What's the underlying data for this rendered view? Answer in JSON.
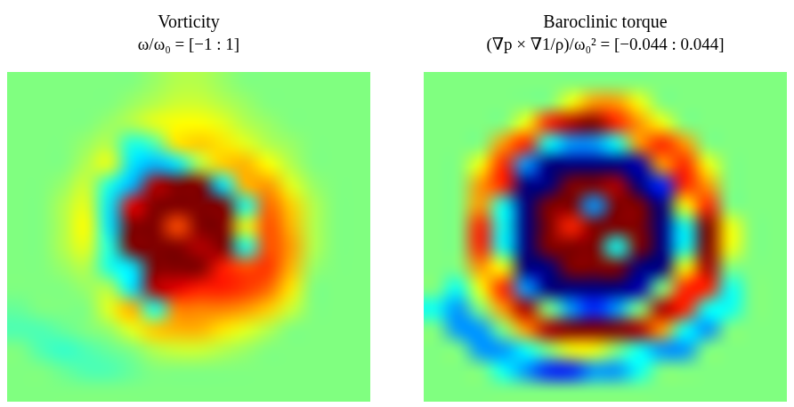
{
  "chart_data": [
    {
      "type": "heatmap",
      "title": "Vorticity",
      "subtitle": "ω/ω₀ = [−1 : 1]",
      "color_range": [
        -1,
        1
      ],
      "tick_labels": false,
      "cells": [
        [
          0,
          0,
          0,
          0,
          0,
          0,
          0.05,
          0.1,
          0.1,
          0.05,
          0,
          0,
          0,
          0,
          0,
          0
        ],
        [
          0,
          0,
          0,
          0,
          0,
          0.05,
          0.1,
          0.15,
          0.15,
          0.1,
          0.05,
          0,
          0,
          0,
          0,
          0
        ],
        [
          0,
          0,
          0,
          0,
          0.05,
          0.1,
          0.2,
          0.25,
          0.25,
          0.2,
          0.1,
          0.05,
          0,
          0,
          0,
          0
        ],
        [
          0,
          0,
          0,
          0.05,
          0.1,
          -0.2,
          -0.1,
          0.3,
          0.35,
          0.3,
          0.2,
          0.1,
          0.05,
          0,
          0,
          0
        ],
        [
          0,
          0,
          0,
          0.1,
          0.2,
          -0.3,
          -0.4,
          -0.3,
          0.1,
          0.35,
          0.4,
          0.25,
          0.1,
          0,
          0,
          0
        ],
        [
          0,
          0,
          0.05,
          0.15,
          -0.2,
          -0.4,
          0.9,
          1,
          1,
          -0.3,
          0.4,
          0.45,
          0.2,
          0.05,
          0,
          0
        ],
        [
          0,
          0,
          0.1,
          0.2,
          -0.3,
          0.8,
          1,
          1,
          1,
          1,
          -0.2,
          0.55,
          0.35,
          0.1,
          0,
          0
        ],
        [
          0,
          0,
          0.1,
          0.25,
          -0.3,
          1,
          1,
          0.6,
          1,
          1,
          0.2,
          0.6,
          0.4,
          0.1,
          0,
          0
        ],
        [
          0,
          0,
          0.1,
          0.2,
          -0.2,
          1,
          1,
          1,
          0.9,
          1,
          -0.2,
          0.6,
          0.45,
          0.1,
          0,
          0
        ],
        [
          0,
          0,
          0.05,
          0.1,
          -0.2,
          -0.3,
          1,
          1,
          1,
          0.7,
          0.6,
          0.65,
          0.4,
          0.05,
          0,
          0
        ],
        [
          0,
          0,
          0,
          0.05,
          0.1,
          -0.3,
          0.9,
          0.8,
          0.7,
          0.7,
          0.65,
          0.55,
          0.3,
          0,
          0,
          0
        ],
        [
          -0.05,
          0,
          0,
          0,
          0.2,
          0.4,
          -0.2,
          0.5,
          0.5,
          0.5,
          0.45,
          0.35,
          0.15,
          0,
          0,
          0
        ],
        [
          -0.1,
          -0.1,
          -0.05,
          0,
          0.05,
          0.2,
          0.35,
          0.4,
          0.4,
          0.3,
          0.2,
          0.1,
          0,
          0,
          0,
          0
        ],
        [
          0,
          -0.1,
          -0.15,
          -0.1,
          -0.05,
          0,
          0.1,
          0.15,
          0.15,
          0.1,
          0.05,
          0,
          0,
          0,
          0,
          0
        ],
        [
          0,
          0,
          -0.05,
          -0.1,
          -0.1,
          -0.05,
          0,
          0,
          0,
          0,
          0,
          0,
          0,
          0,
          0,
          0
        ],
        [
          0,
          0,
          0,
          0,
          0,
          0,
          0,
          0,
          0,
          0,
          0,
          0,
          0,
          0,
          0,
          0
        ]
      ]
    },
    {
      "type": "heatmap",
      "title": "Baroclinic torque",
      "subtitle": "(∇p × ∇1/ρ)/ω₀² = [−0.044 : 0.044]",
      "color_range": [
        -0.044,
        0.044
      ],
      "tick_labels": false,
      "cells": [
        [
          0,
          0,
          0,
          0,
          0,
          0,
          0,
          0,
          0,
          0,
          0,
          0,
          0,
          0,
          0,
          0
        ],
        [
          0,
          0,
          0,
          0,
          0,
          0,
          0.01,
          0.02,
          0.02,
          0.01,
          0,
          0,
          0,
          0,
          0,
          0
        ],
        [
          0,
          0,
          0,
          0,
          0.01,
          0.03,
          0.04,
          0.044,
          0.03,
          0.02,
          0.01,
          0,
          0,
          0,
          0,
          0
        ],
        [
          0,
          0,
          0,
          0.02,
          0.03,
          -0.01,
          -0.02,
          -0.02,
          -0.01,
          0.02,
          0.03,
          0.02,
          0,
          0,
          0,
          0
        ],
        [
          0,
          0,
          0.01,
          0.03,
          -0.02,
          -0.044,
          -0.044,
          -0.044,
          -0.044,
          -0.04,
          0.02,
          0.03,
          0.01,
          0,
          0,
          0
        ],
        [
          0,
          0,
          0.02,
          0.03,
          -0.044,
          -0.044,
          0.044,
          0.044,
          0.04,
          -0.044,
          -0.03,
          0.03,
          0.02,
          0,
          0,
          0
        ],
        [
          0,
          0,
          0.02,
          -0.01,
          -0.044,
          0.044,
          0.044,
          -0.02,
          0.044,
          0.044,
          -0.044,
          0.01,
          0.03,
          0,
          0,
          0
        ],
        [
          0,
          0,
          0.03,
          -0.01,
          -0.044,
          0.044,
          0.03,
          0.044,
          0.044,
          0.044,
          -0.044,
          -0.01,
          0.044,
          0.01,
          0,
          0
        ],
        [
          0,
          0,
          0.03,
          -0.01,
          -0.044,
          0.044,
          0.044,
          0.044,
          -0.01,
          0.044,
          -0.044,
          -0.01,
          0.044,
          0.01,
          0,
          0
        ],
        [
          0,
          0,
          0.02,
          0.01,
          -0.044,
          -0.044,
          0.044,
          0.044,
          0.044,
          -0.044,
          -0.044,
          0.01,
          0.04,
          0,
          0,
          0
        ],
        [
          0,
          -0.01,
          0.01,
          0.03,
          -0.02,
          -0.044,
          -0.044,
          -0.044,
          -0.044,
          -0.04,
          0,
          0.03,
          0.03,
          -0.01,
          0,
          0
        ],
        [
          -0.01,
          -0.02,
          0,
          0.02,
          0.04,
          0,
          -0.02,
          -0.03,
          -0.02,
          0,
          0.04,
          0.03,
          -0.01,
          -0.01,
          0,
          0
        ],
        [
          0,
          -0.02,
          -0.02,
          0,
          0.02,
          0.04,
          0.044,
          0.044,
          0.044,
          0.04,
          0.02,
          -0.01,
          -0.02,
          0,
          0,
          0
        ],
        [
          0,
          0,
          -0.02,
          -0.02,
          -0.01,
          0,
          0.01,
          0.01,
          0,
          -0.01,
          -0.02,
          -0.02,
          0,
          0,
          0,
          0
        ],
        [
          0,
          0,
          0,
          -0.01,
          -0.02,
          -0.03,
          -0.03,
          -0.02,
          -0.02,
          -0.01,
          0,
          0,
          0,
          0,
          0,
          0
        ],
        [
          0,
          0,
          0,
          0,
          0,
          0,
          0,
          0,
          0,
          0,
          0,
          0,
          0,
          0,
          0,
          0
        ]
      ]
    }
  ]
}
